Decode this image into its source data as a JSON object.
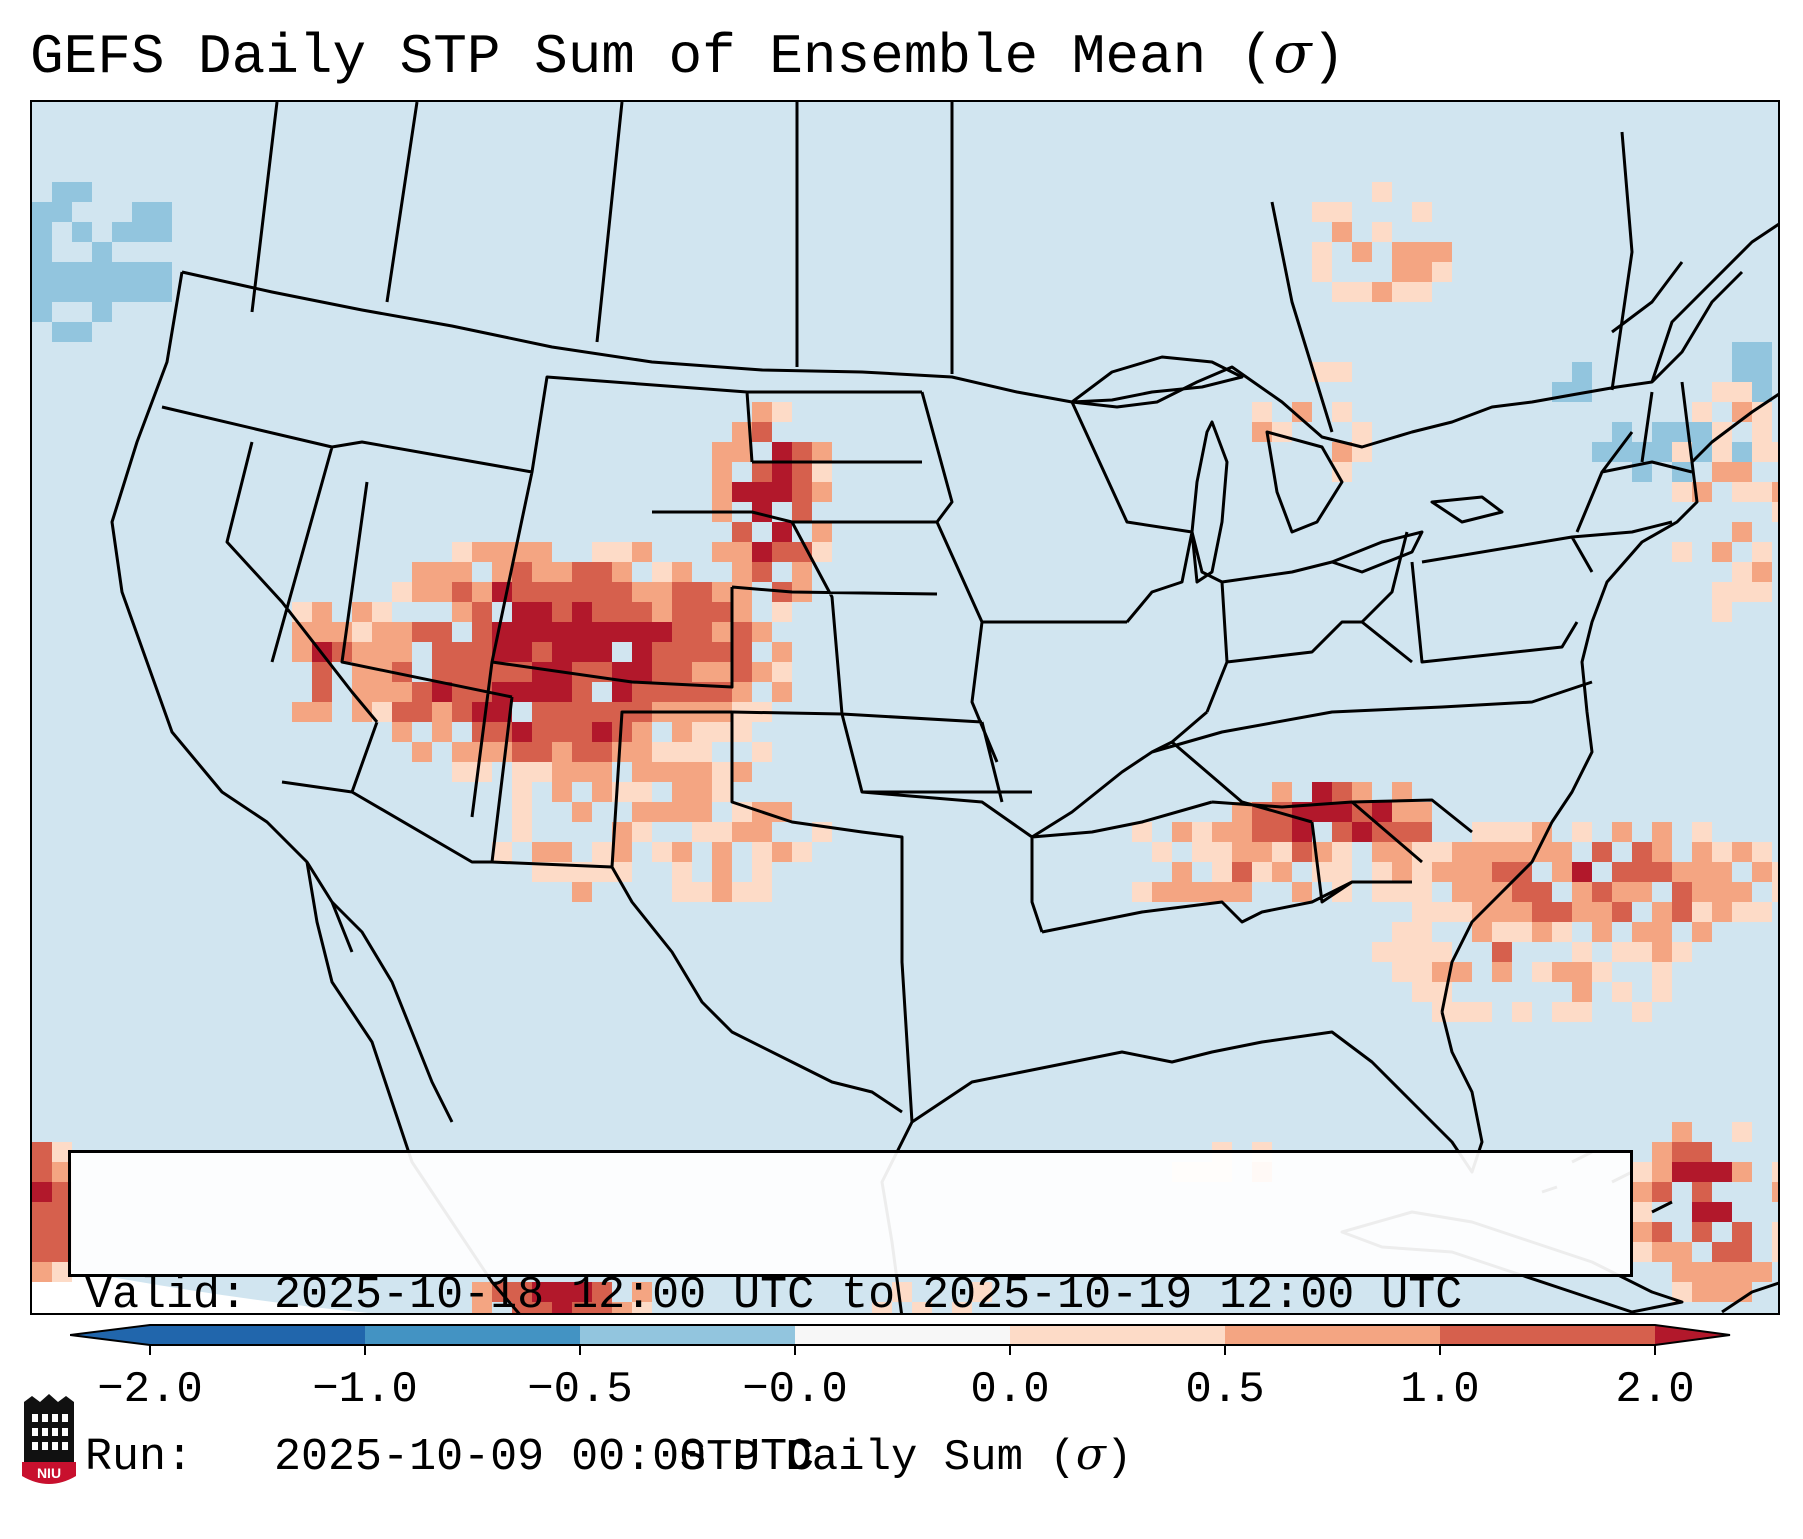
{
  "title": {
    "prefix": "GEFS Daily STP Sum of Ensemble Mean (",
    "symbol": "σ",
    "suffix": ")"
  },
  "info": {
    "valid_label": "Valid:",
    "valid_value": "2025-10-18 12:00 UTC to 2025-10-19 12:00 UTC",
    "run_label": "Run:",
    "run_value": "2025-10-09 00:00 UTC"
  },
  "colorbar": {
    "label_prefix": "STP Daily Sum (",
    "label_symbol": "σ",
    "label_suffix": ")",
    "ticks": [
      "−2.0",
      "−1.0",
      "−0.5",
      "−0.0",
      "0.0",
      "0.5",
      "1.0",
      "2.0"
    ],
    "colors": [
      "#2166ac",
      "#4393c3",
      "#92c5de",
      "#d1e5f0",
      "#fddbc7",
      "#f4a582",
      "#d6604d",
      "#b2182b"
    ]
  },
  "logo": {
    "text": "NIU",
    "colors": {
      "shield": "#c8102e",
      "tower": "#111111"
    }
  },
  "chart_data": {
    "type": "heatmap",
    "title": "GEFS Daily STP Sum of Ensemble Mean (σ)",
    "colorbar_label": "STP Daily Sum (σ)",
    "levels": [
      -2.0,
      -1.0,
      -0.5,
      -0.0,
      0.0,
      0.5,
      1.0,
      2.0
    ],
    "high_regions": [
      "Colorado / Utah / Wyoming (values 1.0 to >2.0)",
      "Western Nebraska / South Dakota (>2.0)",
      "Tennessee / Kentucky (>2.0)",
      "Western Atlantic offshore Carolinas (1.0 to 2.0)",
      "Caribbean near Hispaniola (>2.0)"
    ],
    "low_regions": [
      "Pacific Northwest offshore (−1.0 to −0.5)",
      "New England / St. Lawrence (−1.0 to −0.5)"
    ]
  }
}
